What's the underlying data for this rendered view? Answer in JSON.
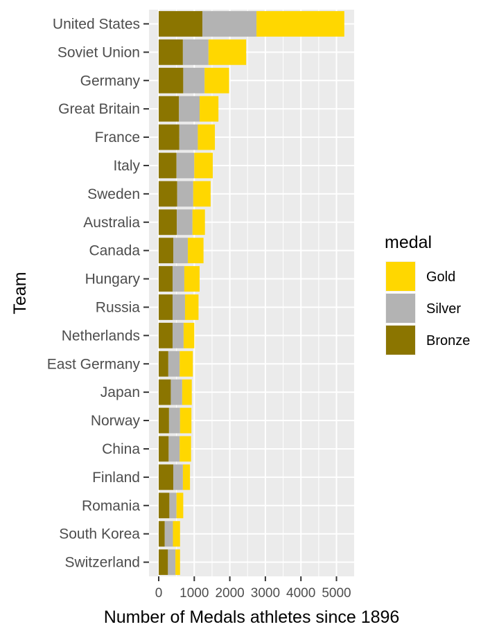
{
  "chart_data": {
    "type": "bar",
    "orientation": "horizontal",
    "stacked": true,
    "xlabel": "Number of Medals athletes since 1896",
    "ylabel": "Team",
    "xlim": [
      0,
      5500
    ],
    "xticks": [
      0,
      1000,
      2000,
      3000,
      4000,
      5000
    ],
    "grid": true,
    "legend_position": "right",
    "legend_title": "medal",
    "categories": [
      "United States",
      "Soviet Union",
      "Germany",
      "Great Britain",
      "France",
      "Italy",
      "Sweden",
      "Australia",
      "Canada",
      "Hungary",
      "Russia",
      "Netherlands",
      "East Germany",
      "Japan",
      "Norway",
      "China",
      "Finland",
      "Romania",
      "South Korea",
      "Switzerland"
    ],
    "series": [
      {
        "name": "Bronze",
        "color": "#8B7500",
        "values": [
          1230,
          680,
          690,
          570,
          580,
          500,
          520,
          510,
          410,
          390,
          390,
          390,
          270,
          340,
          290,
          280,
          410,
          300,
          170,
          260
        ]
      },
      {
        "name": "Silver",
        "color": "#B3B3B3",
        "values": [
          1520,
          720,
          600,
          580,
          520,
          500,
          450,
          440,
          410,
          330,
          350,
          310,
          320,
          320,
          310,
          310,
          270,
          200,
          230,
          210
        ]
      },
      {
        "name": "Gold",
        "color": "#FFD700",
        "values": [
          2470,
          1060,
          690,
          530,
          480,
          520,
          490,
          350,
          440,
          430,
          380,
          300,
          370,
          270,
          320,
          320,
          200,
          190,
          200,
          130
        ]
      }
    ],
    "legend_order": [
      "Gold",
      "Silver",
      "Bronze"
    ]
  }
}
